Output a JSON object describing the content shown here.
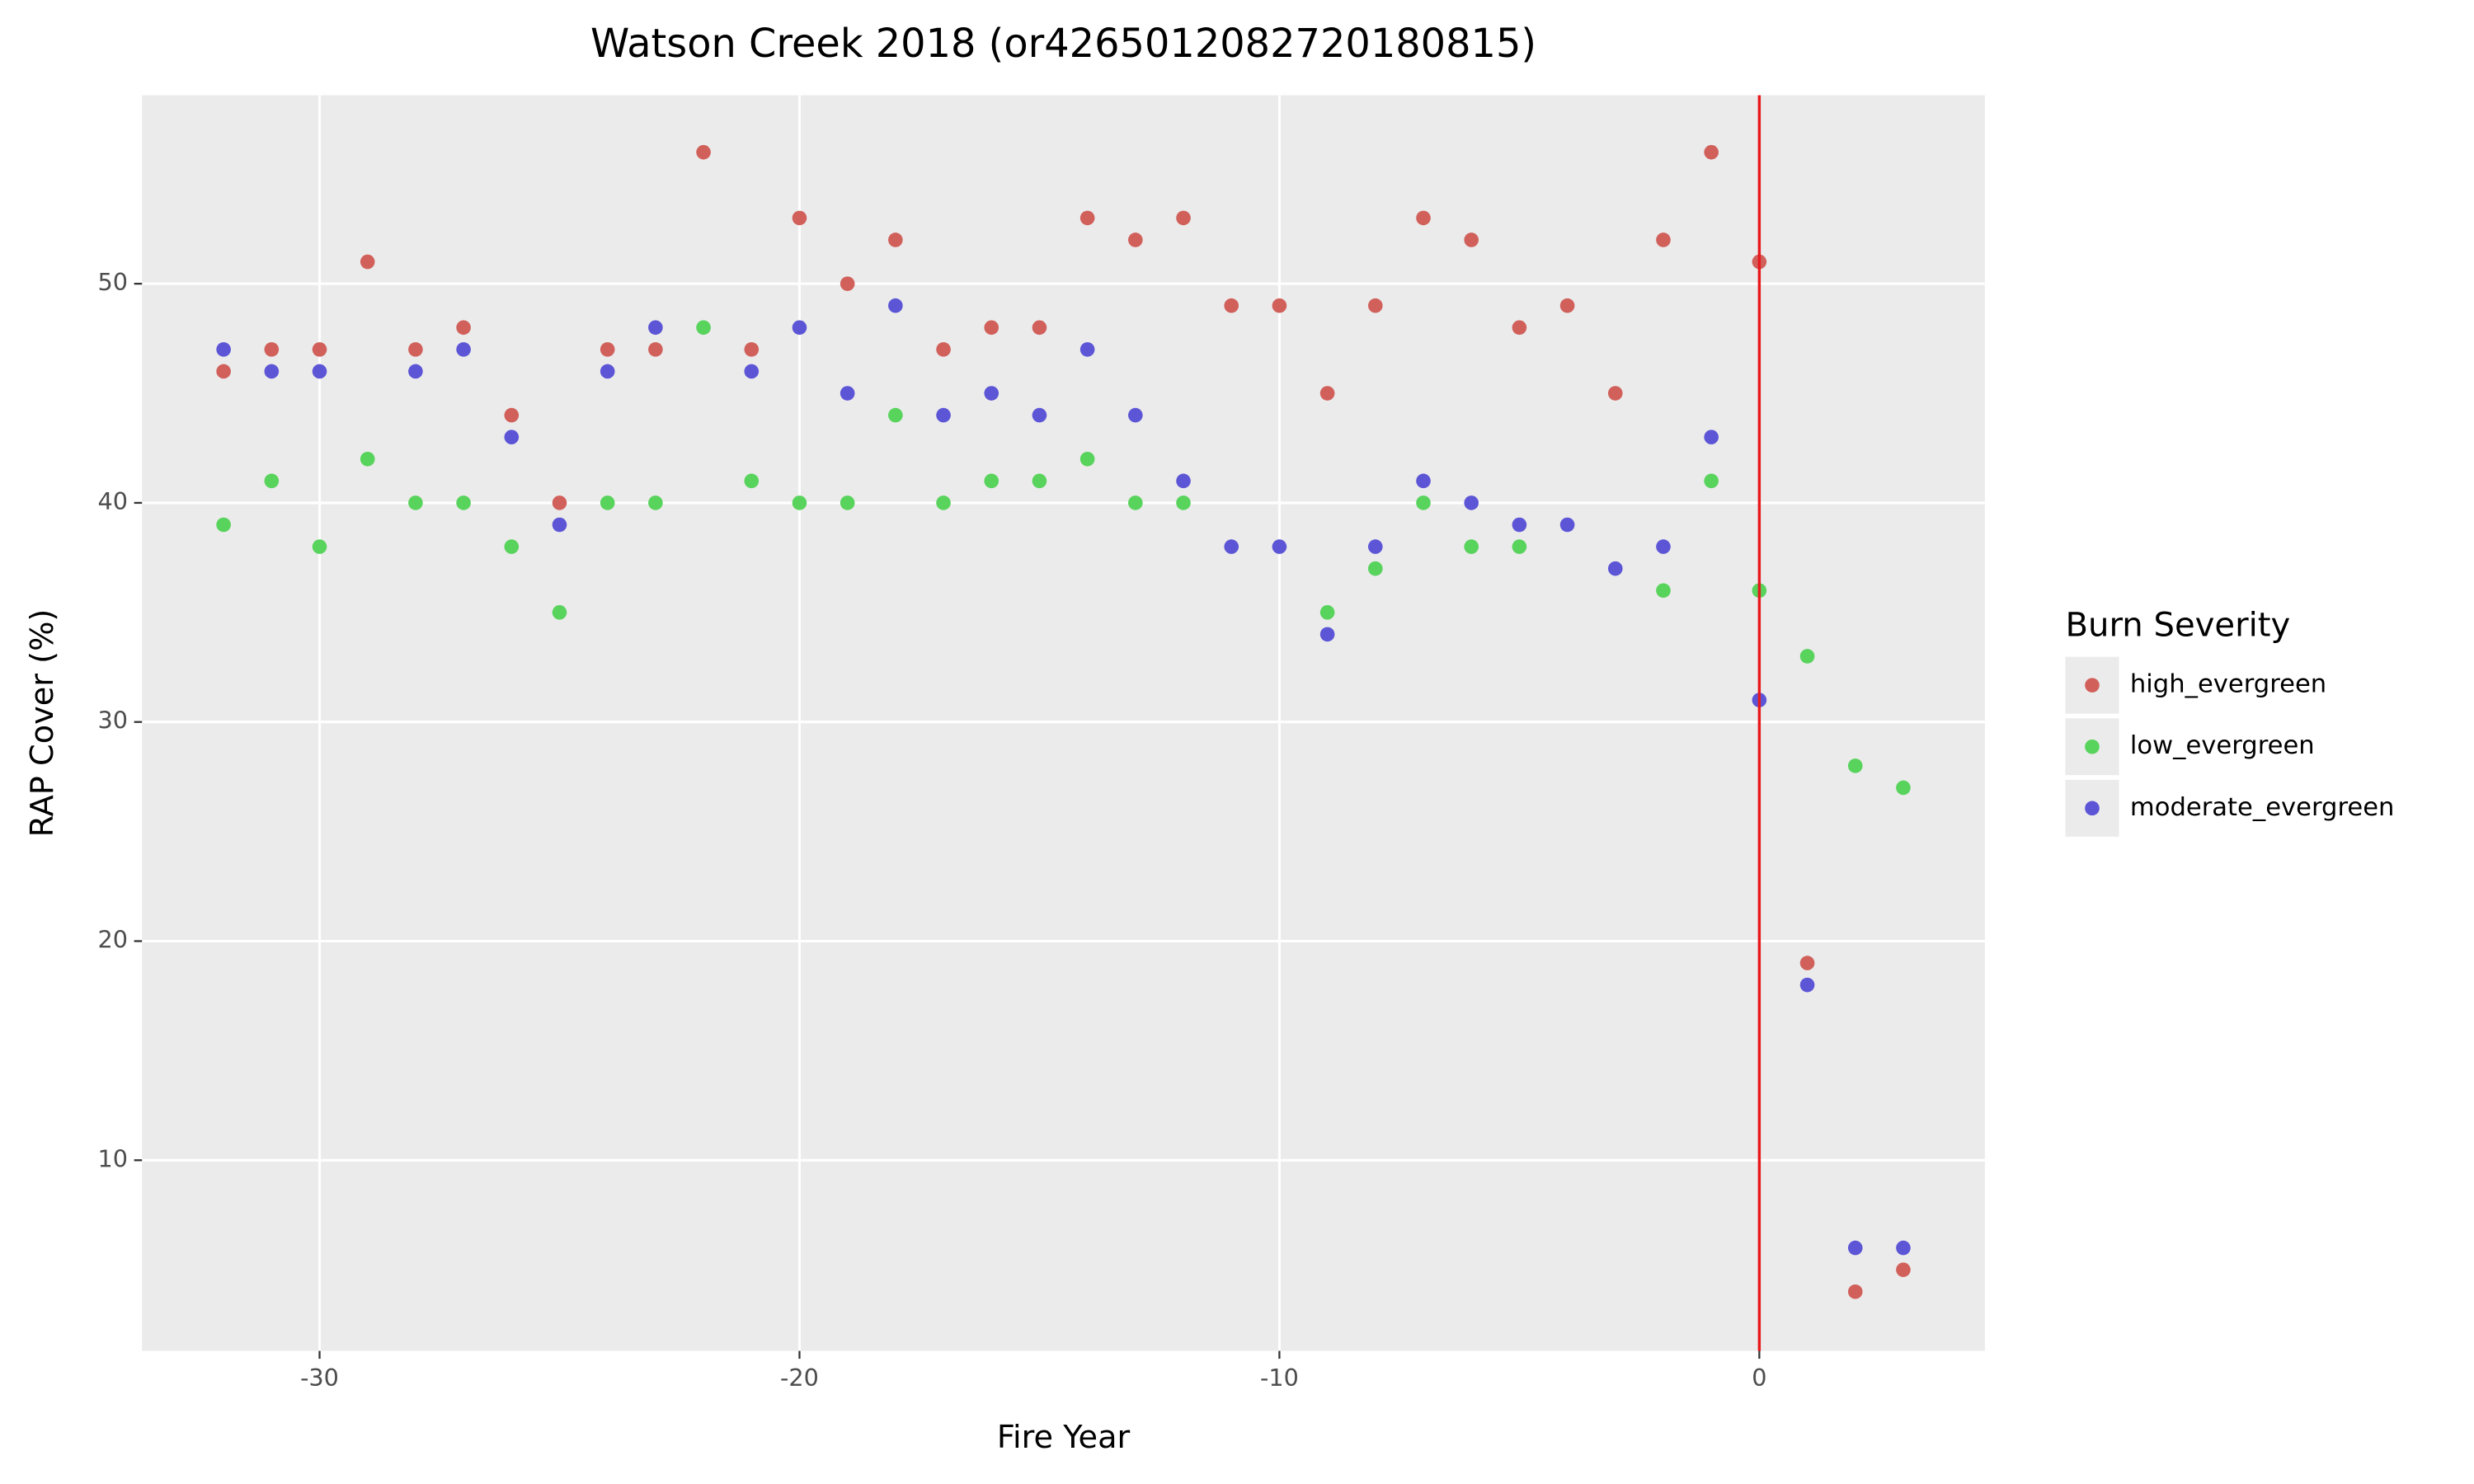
{
  "chart_data": {
    "type": "scatter",
    "title": "Watson Creek 2018 (or4265012082720180815)",
    "x_label": "Fire Year",
    "y_label": "RAP Cover (%)",
    "legend_title": "Burn Severity",
    "legend_position": "right",
    "grid": true,
    "vline": {
      "x": 0,
      "color": "#e8191d"
    },
    "x": [
      -32,
      -31,
      -30,
      -29,
      -28,
      -27,
      -26,
      -25,
      -24,
      -23,
      -22,
      -21,
      -20,
      -19,
      -18,
      -17,
      -16,
      -15,
      -14,
      -13,
      -12,
      -11,
      -10,
      -9,
      -8,
      -7,
      -6,
      -5,
      -4,
      -3,
      -2,
      -1,
      0,
      1,
      2,
      3
    ],
    "series": [
      {
        "name": "high_evergreen",
        "color": "#d1605b",
        "values": [
          46,
          47,
          47,
          51,
          47,
          48,
          44,
          40,
          47,
          47,
          56,
          47,
          53,
          50,
          52,
          47,
          48,
          48,
          53,
          52,
          53,
          49,
          49,
          45,
          49,
          53,
          52,
          48,
          49,
          45,
          52,
          56,
          51,
          19,
          4,
          5
        ]
      },
      {
        "name": "low_evergreen",
        "color": "#58d35c",
        "values": [
          39,
          41,
          38,
          42,
          40,
          40,
          38,
          35,
          40,
          40,
          48,
          41,
          40,
          40,
          44,
          40,
          41,
          41,
          42,
          40,
          40,
          null,
          null,
          35,
          37,
          40,
          38,
          38,
          null,
          null,
          36,
          41,
          36,
          33,
          28,
          27
        ]
      },
      {
        "name": "moderate_evergreen",
        "color": "#5c55d6",
        "values": [
          47,
          46,
          46,
          null,
          46,
          47,
          43,
          39,
          46,
          48,
          null,
          46,
          48,
          45,
          49,
          44,
          45,
          44,
          47,
          44,
          41,
          38,
          38,
          34,
          38,
          41,
          40,
          39,
          39,
          37,
          38,
          43,
          31,
          18,
          6,
          6
        ]
      }
    ],
    "xlim": [
      -33.7,
      4.7
    ],
    "xticks": [
      -30,
      -20,
      -10,
      0
    ],
    "ylim": [
      1.3,
      58.6
    ],
    "yticks": [
      10,
      20,
      30,
      40,
      50
    ]
  }
}
